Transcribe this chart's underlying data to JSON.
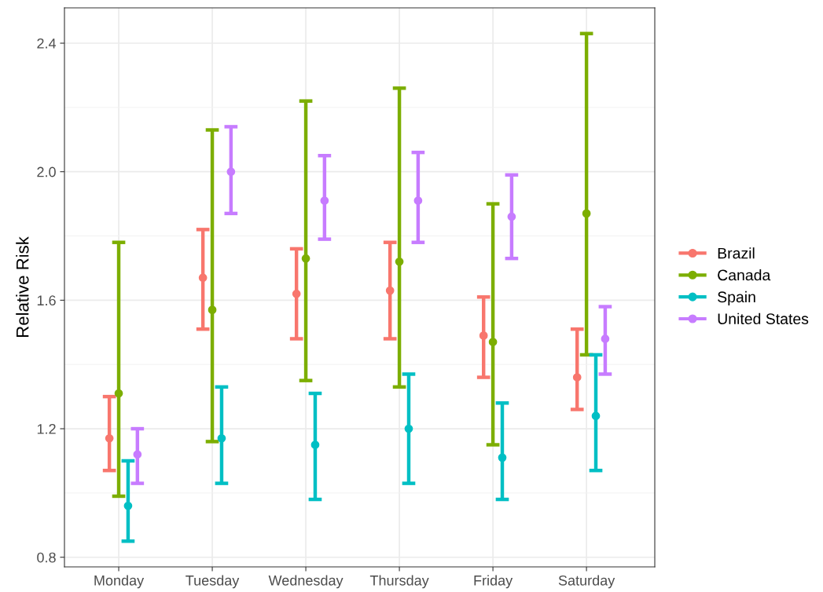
{
  "chart_data": {
    "type": "scatter",
    "ylabel": "Relative Risk",
    "categories": [
      "Monday",
      "Tuesday",
      "Wednesday",
      "Thursday",
      "Friday",
      "Saturday"
    ],
    "series": [
      {
        "name": "Brazil",
        "color": "#f8766d",
        "values": [
          1.17,
          1.67,
          1.62,
          1.63,
          1.49,
          1.36
        ],
        "errors": [
          [
            1.07,
            1.3
          ],
          [
            1.51,
            1.82
          ],
          [
            1.48,
            1.76
          ],
          [
            1.48,
            1.78
          ],
          [
            1.36,
            1.61
          ],
          [
            1.26,
            1.51
          ]
        ]
      },
      {
        "name": "Canada",
        "color": "#7cae00",
        "values": [
          1.31,
          1.57,
          1.73,
          1.72,
          1.47,
          1.87
        ],
        "errors": [
          [
            0.99,
            1.78
          ],
          [
            1.16,
            2.13
          ],
          [
            1.35,
            2.22
          ],
          [
            1.33,
            2.26
          ],
          [
            1.15,
            1.9
          ],
          [
            1.43,
            2.43
          ]
        ]
      },
      {
        "name": "Spain",
        "color": "#00bfc4",
        "values": [
          0.96,
          1.17,
          1.15,
          1.2,
          1.11,
          1.24
        ],
        "errors": [
          [
            0.85,
            1.1
          ],
          [
            1.03,
            1.33
          ],
          [
            0.98,
            1.31
          ],
          [
            1.03,
            1.37
          ],
          [
            0.98,
            1.28
          ],
          [
            1.07,
            1.43
          ]
        ]
      },
      {
        "name": "United States",
        "color": "#c77cff",
        "values": [
          1.12,
          2.0,
          1.91,
          1.91,
          1.86,
          1.48
        ],
        "errors": [
          [
            1.03,
            1.2
          ],
          [
            1.87,
            2.14
          ],
          [
            1.79,
            2.05
          ],
          [
            1.78,
            2.06
          ],
          [
            1.73,
            1.99
          ],
          [
            1.37,
            1.58
          ]
        ]
      }
    ],
    "ylim": [
      0.77,
      2.51
    ],
    "yticks": [
      {
        "value": 0.8,
        "label": "0.8"
      },
      {
        "value": 1.2,
        "label": "1.2"
      },
      {
        "value": 1.6,
        "label": "1.6"
      },
      {
        "value": 2.0,
        "label": "2.0"
      },
      {
        "value": 2.4,
        "label": "2.4"
      }
    ],
    "grid": true,
    "legend": "right",
    "marker": "circle"
  }
}
